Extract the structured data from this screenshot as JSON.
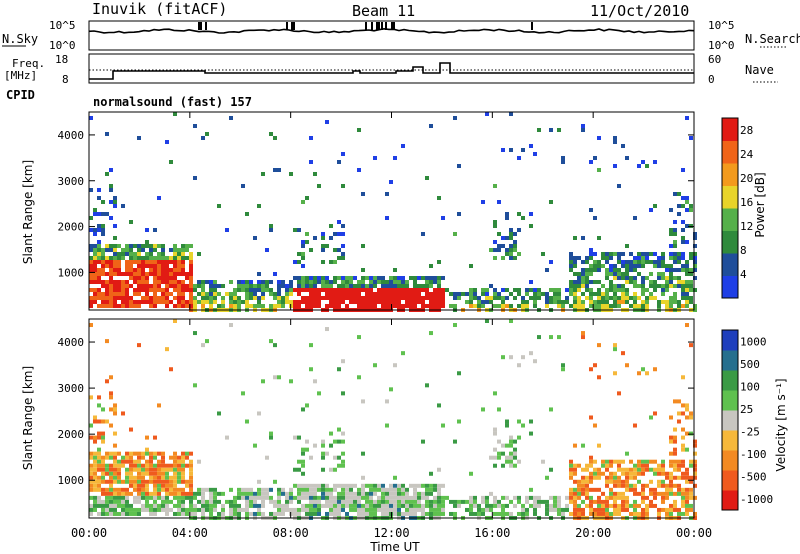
{
  "header": {
    "station": "Inuvik (fitACF)",
    "beam": "Beam 11",
    "date": "11/Oct/2010"
  },
  "summary_panels": {
    "nsky_label": "N.Sky",
    "nsearch_label": "N.Search",
    "noise_ticks": [
      "10^5",
      "10^0"
    ],
    "freq_label": "Freq.",
    "freq_unit": "[MHz]",
    "freq_ticks": [
      "18",
      "8"
    ],
    "nave_label": "Nave",
    "nave_ticks": [
      "60",
      "0"
    ],
    "cpid_label": "CPID",
    "cpid_value": "normalsound (fast) 157"
  },
  "colors": {
    "power_scale": [
      "#1f3fe6",
      "#1f4e9a",
      "#2f8a3c",
      "#55b04a",
      "#e8d42a",
      "#f39a1c",
      "#f06418",
      "#e11b14"
    ],
    "velocity_scale": [
      "#e11b14",
      "#ef5a1e",
      "#f38a22",
      "#f6b83a",
      "#c8c6c0",
      "#5fc14f",
      "#3a9a45",
      "#256f8e",
      "#1f3fbd"
    ]
  },
  "chart_data": [
    {
      "type": "heatmap",
      "quantity": "Power",
      "ylabel": "Slant Range [km]",
      "yticks": [
        "1000",
        "2000",
        "3000",
        "4000"
      ],
      "ylim": [
        180,
        4500
      ],
      "xticks": [
        "00:00",
        "04:00",
        "08:00",
        "12:00",
        "16:00",
        "20:00",
        "00:00"
      ],
      "xlim": [
        0,
        24
      ],
      "colorbar_label": "Power [dB]",
      "colorbar_ticks": [
        "4",
        "8",
        "12",
        "16",
        "20",
        "24",
        "28"
      ],
      "colorbar_range": [
        0,
        30
      ]
    },
    {
      "type": "heatmap",
      "quantity": "Velocity",
      "ylabel": "Slant Range [km]",
      "yticks": [
        "1000",
        "2000",
        "3000",
        "4000"
      ],
      "ylim": [
        180,
        4500
      ],
      "xticks": [
        "00:00",
        "04:00",
        "08:00",
        "12:00",
        "16:00",
        "20:00",
        "00:00"
      ],
      "xlim": [
        0,
        24
      ],
      "xlabel": "Time UT",
      "colorbar_label": "Velocity [m s⁻¹]",
      "colorbar_ticks": [
        "1000",
        "500",
        "100",
        "25",
        "-25",
        "-100",
        "-500",
        "-1000"
      ]
    }
  ]
}
